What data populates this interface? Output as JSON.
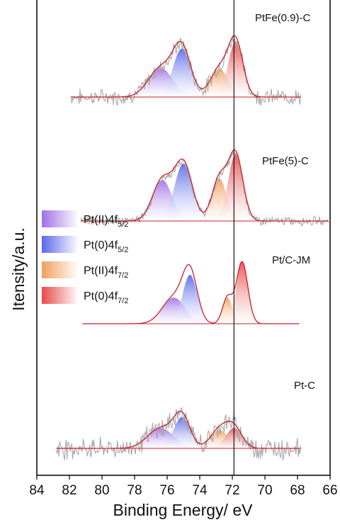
{
  "chart_data": {
    "type": "line",
    "title": "",
    "xlabel": "Binding Energy/ eV",
    "ylabel": "Itensity/a.u.",
    "xlim": [
      84,
      66
    ],
    "x_reversed": true,
    "xticks": [
      84,
      82,
      80,
      78,
      76,
      74,
      72,
      70,
      68,
      66
    ],
    "ytick_labels": false,
    "grid": false,
    "legend_position": "left-middle",
    "reference_line_x": 71.9,
    "legend": [
      {
        "base": "Pt(II)4f",
        "sub": "5/2",
        "color": "#a070e8"
      },
      {
        "base": "Pt(0)4f",
        "sub": "5/2",
        "color": "#5a68e8"
      },
      {
        "base": "Pt(II)4f",
        "sub": "7/2",
        "color": "#f0a060"
      },
      {
        "base": "Pt(0)4f",
        "sub": "7/2",
        "color": "#e84a4a"
      }
    ],
    "colors": {
      "raw": "#a8a8a8",
      "envelope": "#c8202a",
      "baseline": "#c8202a",
      "ref_line": "#111111",
      "pt2_52": "#a070e8",
      "pt0_52": "#5a68e8",
      "pt2_72": "#f0a060",
      "pt0_72": "#e84a4a"
    },
    "series": [
      {
        "name": "PtFe(0.9)-C",
        "x_range": [
          81.9,
          67.8
        ],
        "peaks": [
          {
            "component": "Pt(II)4f5/2",
            "center": 76.4,
            "sigma": 0.75,
            "height": 0.34
          },
          {
            "component": "Pt(0)4f5/2",
            "center": 75.1,
            "sigma": 0.55,
            "height": 0.57
          },
          {
            "component": "Pt(II)4f7/2",
            "center": 72.8,
            "sigma": 0.55,
            "height": 0.33
          },
          {
            "component": "Pt(0)4f7/2",
            "center": 71.8,
            "sigma": 0.45,
            "height": 0.65
          }
        ],
        "noise": 0.08
      },
      {
        "name": "PtFe(5)-C",
        "x_range": [
          81.3,
          66.1
        ],
        "peaks": [
          {
            "component": "Pt(II)4f5/2",
            "center": 76.3,
            "sigma": 0.6,
            "height": 0.43
          },
          {
            "component": "Pt(0)4f5/2",
            "center": 75.0,
            "sigma": 0.55,
            "height": 0.6
          },
          {
            "component": "Pt(II)4f7/2",
            "center": 72.8,
            "sigma": 0.45,
            "height": 0.44
          },
          {
            "component": "Pt(0)4f7/2",
            "center": 71.8,
            "sigma": 0.45,
            "height": 0.7
          }
        ],
        "noise": 0.04
      },
      {
        "name": "Pt/C-JM",
        "x_range": [
          81.2,
          67.9
        ],
        "peaks": [
          {
            "component": "Pt(II)4f5/2",
            "center": 75.6,
            "sigma": 0.7,
            "height": 0.32
          },
          {
            "component": "Pt(0)4f5/2",
            "center": 74.6,
            "sigma": 0.45,
            "height": 0.6
          },
          {
            "component": "Pt(II)4f7/2",
            "center": 72.3,
            "sigma": 0.3,
            "height": 0.32
          },
          {
            "component": "Pt(0)4f7/2",
            "center": 71.4,
            "sigma": 0.35,
            "height": 0.76
          }
        ],
        "noise": 0.0
      },
      {
        "name": "Pt-C",
        "x_range": [
          82.8,
          67.8
        ],
        "peaks": [
          {
            "component": "Pt(II)4f5/2",
            "center": 76.4,
            "sigma": 0.8,
            "height": 0.22
          },
          {
            "component": "Pt(0)4f5/2",
            "center": 75.1,
            "sigma": 0.5,
            "height": 0.34
          },
          {
            "component": "Pt(II)4f7/2",
            "center": 72.8,
            "sigma": 0.55,
            "height": 0.2
          },
          {
            "component": "Pt(0)4f7/2",
            "center": 71.9,
            "sigma": 0.5,
            "height": 0.22
          }
        ],
        "noise": 0.1
      }
    ]
  }
}
